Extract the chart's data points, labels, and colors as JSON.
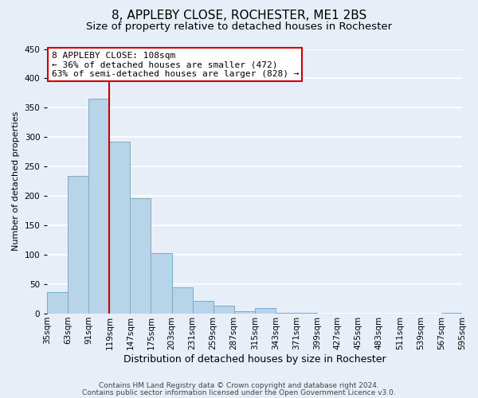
{
  "title": "8, APPLEBY CLOSE, ROCHESTER, ME1 2BS",
  "subtitle": "Size of property relative to detached houses in Rochester",
  "bar_values": [
    36,
    234,
    365,
    293,
    196,
    103,
    45,
    22,
    14,
    4,
    10,
    1,
    1,
    0,
    0,
    0,
    0,
    0,
    0,
    1
  ],
  "categories": [
    "35sqm",
    "63sqm",
    "91sqm",
    "119sqm",
    "147sqm",
    "175sqm",
    "203sqm",
    "231sqm",
    "259sqm",
    "287sqm",
    "315sqm",
    "343sqm",
    "371sqm",
    "399sqm",
    "427sqm",
    "455sqm",
    "483sqm",
    "511sqm",
    "539sqm",
    "567sqm",
    "595sqm"
  ],
  "bar_color": "#b8d4e8",
  "bar_edge_color": "#7aaac8",
  "vline_x": 3,
  "vline_color": "#cc0000",
  "ylim": [
    0,
    450
  ],
  "yticks": [
    0,
    50,
    100,
    150,
    200,
    250,
    300,
    350,
    400,
    450
  ],
  "ylabel": "Number of detached properties",
  "xlabel": "Distribution of detached houses by size in Rochester",
  "annotation_title": "8 APPLEBY CLOSE: 108sqm",
  "annotation_line1": "← 36% of detached houses are smaller (472)",
  "annotation_line2": "63% of semi-detached houses are larger (828) →",
  "footer1": "Contains HM Land Registry data © Crown copyright and database right 2024.",
  "footer2": "Contains public sector information licensed under the Open Government Licence v3.0.",
  "background_color": "#e8eef8",
  "grid_color": "#ffffff",
  "title_fontsize": 11,
  "subtitle_fontsize": 9.5,
  "ylabel_fontsize": 8,
  "xlabel_fontsize": 9,
  "tick_fontsize": 7.5,
  "annotation_fontsize": 8,
  "footer_fontsize": 6.5
}
